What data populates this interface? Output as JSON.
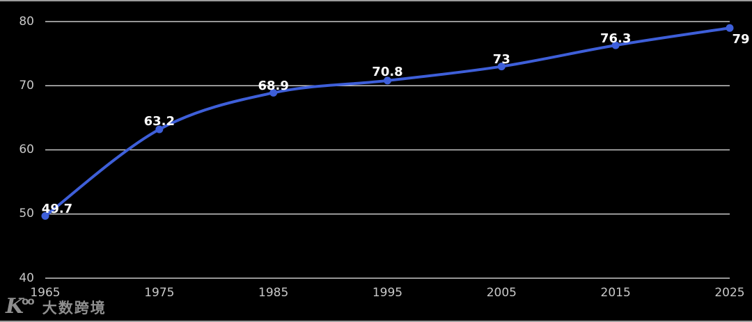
{
  "chart_data": {
    "type": "line",
    "title": "",
    "xlabel": "",
    "ylabel": "",
    "categories": [
      "1965",
      "1975",
      "1985",
      "1995",
      "2005",
      "2015",
      "2025"
    ],
    "values": [
      49.7,
      63.2,
      68.9,
      70.8,
      73,
      76.3,
      79
    ],
    "point_labels": [
      "49.7",
      "63.2",
      "68.9",
      "70.8",
      "73",
      "76.3",
      "79"
    ],
    "ylim": [
      40,
      80
    ],
    "yticks": [
      "40",
      "50",
      "60",
      "70",
      "80"
    ],
    "grid": true,
    "legend_position": "none",
    "smooth": true,
    "line_color": "#3e5fd9",
    "marker_color": "#3e5fd9",
    "data_label_color": "#ffffff",
    "axis_label_color": "#c8c8c8",
    "gridline_color": "#c8c8c8",
    "background_color": "#000000"
  },
  "watermark": {
    "logo_main": "K",
    "logo_sup": "oo",
    "text": "大数跨境"
  }
}
